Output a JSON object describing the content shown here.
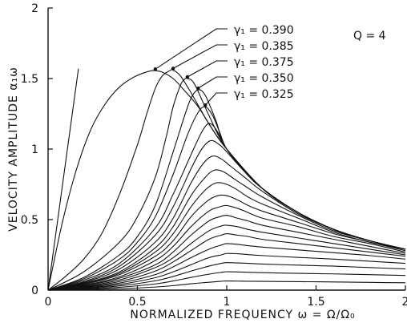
{
  "chart_data": {
    "type": "line",
    "title": "",
    "xlabel": "NORMALIZED FREQUENCY  ω = Ω/Ω₀",
    "ylabel": "VELOCITY  AMPLITUDE  α₁ω",
    "xlim": [
      0,
      2
    ],
    "ylim": [
      0,
      2
    ],
    "x_ticks": [
      {
        "value": 0,
        "label": "0"
      },
      {
        "value": 0.5,
        "label": "0.5"
      },
      {
        "value": 1,
        "label": "1"
      },
      {
        "value": 1.5,
        "label": "1.5"
      },
      {
        "value": 2,
        "label": "2"
      }
    ],
    "y_ticks": [
      {
        "value": 0,
        "label": "0"
      },
      {
        "value": 0.5,
        "label": "0.5"
      },
      {
        "value": 1,
        "label": "1"
      },
      {
        "value": 1.5,
        "label": "1.5"
      },
      {
        "value": 2,
        "label": "2"
      }
    ],
    "parameter_note": "Q = 4",
    "annotations": [
      {
        "label": "γ₁ = 0.390",
        "target_x": 0.6,
        "target_y": 1.555
      },
      {
        "label": "γ₁ = 0.385",
        "target_x": 0.7,
        "target_y": 1.56
      },
      {
        "label": "γ₁ = 0.375",
        "target_x": 0.78,
        "target_y": 1.5
      },
      {
        "label": "γ₁ = 0.350",
        "target_x": 0.84,
        "target_y": 1.42
      },
      {
        "label": "γ₁ = 0.325",
        "target_x": 0.88,
        "target_y": 1.3
      }
    ],
    "reference_lines": [
      {
        "x": [
          0,
          0.17
        ],
        "y": [
          0,
          1.57
        ]
      }
    ],
    "series": [
      {
        "x": [
          0,
          0.08,
          0.16,
          0.24,
          0.32,
          0.4,
          0.48,
          0.56,
          0.6,
          0.64,
          0.7,
          0.76,
          0.84,
          0.92,
          1,
          1.2,
          1.4,
          1.6,
          1.8,
          2
        ],
        "y": [
          0,
          0.48,
          0.86,
          1.14,
          1.32,
          1.44,
          1.51,
          1.55,
          1.556,
          1.545,
          1.5,
          1.42,
          1.3,
          1.14,
          1.0,
          0.72,
          0.55,
          0.43,
          0.35,
          0.29
        ]
      },
      {
        "x": [
          0,
          0.1,
          0.2,
          0.3,
          0.4,
          0.5,
          0.55,
          0.6,
          0.64,
          0.68,
          0.7,
          0.74,
          0.8,
          0.9,
          1,
          1.2,
          1.4,
          1.6,
          1.8,
          2
        ],
        "y": [
          0,
          0.1,
          0.22,
          0.4,
          0.68,
          1.03,
          1.24,
          1.43,
          1.52,
          1.555,
          1.56,
          1.52,
          1.4,
          1.18,
          1.0,
          0.72,
          0.55,
          0.43,
          0.35,
          0.29
        ]
      },
      {
        "x": [
          0,
          0.2,
          0.4,
          0.5,
          0.6,
          0.66,
          0.7,
          0.74,
          0.76,
          0.78,
          0.82,
          0.9,
          1,
          1.2,
          1.4,
          1.6,
          1.8,
          2
        ],
        "y": [
          0,
          0.13,
          0.34,
          0.52,
          0.8,
          1.08,
          1.3,
          1.45,
          1.49,
          1.5,
          1.46,
          1.24,
          1.0,
          0.72,
          0.55,
          0.43,
          0.35,
          0.29
        ]
      },
      {
        "x": [
          0,
          0.2,
          0.4,
          0.5,
          0.6,
          0.7,
          0.76,
          0.8,
          0.84,
          0.88,
          0.94,
          1,
          1.2,
          1.4,
          1.6,
          1.8,
          2
        ],
        "y": [
          0,
          0.09,
          0.25,
          0.38,
          0.6,
          0.98,
          1.22,
          1.36,
          1.42,
          1.38,
          1.2,
          1.0,
          0.72,
          0.55,
          0.43,
          0.35,
          0.29
        ]
      },
      {
        "x": [
          0,
          0.2,
          0.4,
          0.5,
          0.6,
          0.7,
          0.78,
          0.84,
          0.88,
          0.92,
          0.96,
          1,
          1.1,
          1.2,
          1.4,
          1.6,
          1.8,
          2
        ],
        "y": [
          0,
          0.08,
          0.22,
          0.34,
          0.52,
          0.82,
          1.1,
          1.26,
          1.3,
          1.24,
          1.12,
          1.0,
          0.84,
          0.72,
          0.55,
          0.43,
          0.35,
          0.29
        ]
      },
      {
        "x": [
          0,
          0.2,
          0.4,
          0.6,
          0.7,
          0.8,
          0.86,
          0.9,
          0.94,
          1,
          1.1,
          1.2,
          1.4,
          1.6,
          1.8,
          2
        ],
        "y": [
          0,
          0.07,
          0.19,
          0.44,
          0.68,
          0.96,
          1.12,
          1.18,
          1.14,
          1.0,
          0.84,
          0.72,
          0.55,
          0.43,
          0.35,
          0.29
        ]
      },
      {
        "x": [
          0,
          0.2,
          0.4,
          0.6,
          0.7,
          0.8,
          0.86,
          0.91,
          0.96,
          1,
          1.1,
          1.2,
          1.4,
          1.6,
          1.8,
          2
        ],
        "y": [
          0,
          0.06,
          0.17,
          0.39,
          0.59,
          0.86,
          1.0,
          1.06,
          1.03,
          0.98,
          0.84,
          0.72,
          0.55,
          0.43,
          0.35,
          0.29
        ]
      },
      {
        "x": [
          0,
          0.2,
          0.4,
          0.6,
          0.7,
          0.8,
          0.87,
          0.92,
          0.97,
          1.02,
          1.1,
          1.2,
          1.4,
          1.6,
          1.8,
          2
        ],
        "y": [
          0,
          0.055,
          0.15,
          0.34,
          0.51,
          0.76,
          0.9,
          0.95,
          0.93,
          0.88,
          0.8,
          0.7,
          0.54,
          0.43,
          0.35,
          0.29
        ]
      },
      {
        "x": [
          0,
          0.2,
          0.4,
          0.6,
          0.7,
          0.8,
          0.88,
          0.93,
          0.98,
          1.04,
          1.1,
          1.2,
          1.4,
          1.6,
          1.8,
          2
        ],
        "y": [
          0,
          0.05,
          0.13,
          0.3,
          0.45,
          0.67,
          0.8,
          0.85,
          0.84,
          0.79,
          0.74,
          0.66,
          0.53,
          0.42,
          0.35,
          0.29
        ]
      },
      {
        "x": [
          0,
          0.2,
          0.4,
          0.6,
          0.7,
          0.8,
          0.88,
          0.94,
          1,
          1.06,
          1.12,
          1.2,
          1.4,
          1.6,
          1.8,
          2
        ],
        "y": [
          0,
          0.045,
          0.12,
          0.27,
          0.4,
          0.59,
          0.71,
          0.76,
          0.75,
          0.71,
          0.66,
          0.61,
          0.51,
          0.41,
          0.34,
          0.29
        ]
      },
      {
        "x": [
          0,
          0.2,
          0.4,
          0.6,
          0.7,
          0.8,
          0.89,
          0.95,
          1,
          1.06,
          1.12,
          1.2,
          1.4,
          1.6,
          1.8,
          2
        ],
        "y": [
          0,
          0.04,
          0.11,
          0.24,
          0.35,
          0.52,
          0.63,
          0.67,
          0.67,
          0.64,
          0.6,
          0.56,
          0.48,
          0.4,
          0.34,
          0.28
        ]
      },
      {
        "x": [
          0,
          0.2,
          0.4,
          0.6,
          0.7,
          0.8,
          0.9,
          0.96,
          1,
          1.06,
          1.12,
          1.2,
          1.4,
          1.6,
          1.8,
          2
        ],
        "y": [
          0,
          0.035,
          0.095,
          0.21,
          0.31,
          0.45,
          0.56,
          0.59,
          0.6,
          0.58,
          0.55,
          0.51,
          0.45,
          0.38,
          0.33,
          0.27
        ]
      },
      {
        "x": [
          0,
          0.2,
          0.4,
          0.6,
          0.7,
          0.8,
          0.9,
          0.96,
          1,
          1.06,
          1.12,
          1.2,
          1.4,
          1.6,
          1.8,
          2
        ],
        "y": [
          0,
          0.03,
          0.085,
          0.18,
          0.27,
          0.39,
          0.49,
          0.52,
          0.53,
          0.51,
          0.49,
          0.46,
          0.41,
          0.36,
          0.31,
          0.26
        ]
      },
      {
        "x": [
          0,
          0.2,
          0.4,
          0.6,
          0.7,
          0.8,
          0.9,
          0.97,
          1,
          1.06,
          1.12,
          1.2,
          1.4,
          1.6,
          1.8,
          2
        ],
        "y": [
          0,
          0.026,
          0.072,
          0.16,
          0.23,
          0.33,
          0.42,
          0.455,
          0.46,
          0.45,
          0.43,
          0.41,
          0.37,
          0.33,
          0.29,
          0.25
        ]
      },
      {
        "x": [
          0,
          0.2,
          0.4,
          0.6,
          0.7,
          0.8,
          0.9,
          0.97,
          1,
          1.06,
          1.12,
          1.2,
          1.4,
          1.6,
          1.8,
          2
        ],
        "y": [
          0,
          0.022,
          0.061,
          0.135,
          0.2,
          0.28,
          0.36,
          0.39,
          0.4,
          0.39,
          0.38,
          0.36,
          0.33,
          0.3,
          0.27,
          0.24
        ]
      },
      {
        "x": [
          0,
          0.2,
          0.4,
          0.6,
          0.7,
          0.8,
          0.9,
          0.97,
          1,
          1.06,
          1.12,
          1.2,
          1.4,
          1.6,
          1.8,
          2
        ],
        "y": [
          0,
          0.018,
          0.05,
          0.11,
          0.165,
          0.23,
          0.29,
          0.32,
          0.33,
          0.325,
          0.315,
          0.305,
          0.285,
          0.265,
          0.245,
          0.22
        ]
      },
      {
        "x": [
          0,
          0.2,
          0.4,
          0.6,
          0.7,
          0.8,
          0.9,
          0.97,
          1,
          1.06,
          1.12,
          1.2,
          1.4,
          1.6,
          1.8,
          2
        ],
        "y": [
          0,
          0.014,
          0.04,
          0.088,
          0.13,
          0.18,
          0.23,
          0.25,
          0.26,
          0.258,
          0.252,
          0.245,
          0.232,
          0.22,
          0.205,
          0.19
        ]
      },
      {
        "x": [
          0,
          0.2,
          0.4,
          0.6,
          0.7,
          0.8,
          0.9,
          0.97,
          1,
          1.06,
          1.12,
          1.2,
          1.4,
          1.6,
          1.8,
          2
        ],
        "y": [
          0,
          0.011,
          0.03,
          0.066,
          0.097,
          0.135,
          0.17,
          0.19,
          0.195,
          0.193,
          0.19,
          0.185,
          0.177,
          0.17,
          0.16,
          0.15
        ]
      },
      {
        "x": [
          0,
          0.2,
          0.4,
          0.6,
          0.7,
          0.8,
          0.9,
          0.97,
          1,
          1.06,
          1.12,
          1.2,
          1.4,
          1.6,
          1.8,
          2
        ],
        "y": [
          0,
          0.007,
          0.02,
          0.044,
          0.065,
          0.09,
          0.113,
          0.126,
          0.13,
          0.129,
          0.127,
          0.124,
          0.119,
          0.115,
          0.11,
          0.104
        ]
      },
      {
        "x": [
          0,
          0.2,
          0.4,
          0.6,
          0.7,
          0.8,
          0.9,
          0.97,
          1,
          1.06,
          1.12,
          1.2,
          1.4,
          1.6,
          1.8,
          2
        ],
        "y": [
          0,
          0.0035,
          0.01,
          0.022,
          0.032,
          0.045,
          0.056,
          0.063,
          0.065,
          0.064,
          0.063,
          0.062,
          0.06,
          0.058,
          0.055,
          0.052
        ]
      }
    ]
  }
}
